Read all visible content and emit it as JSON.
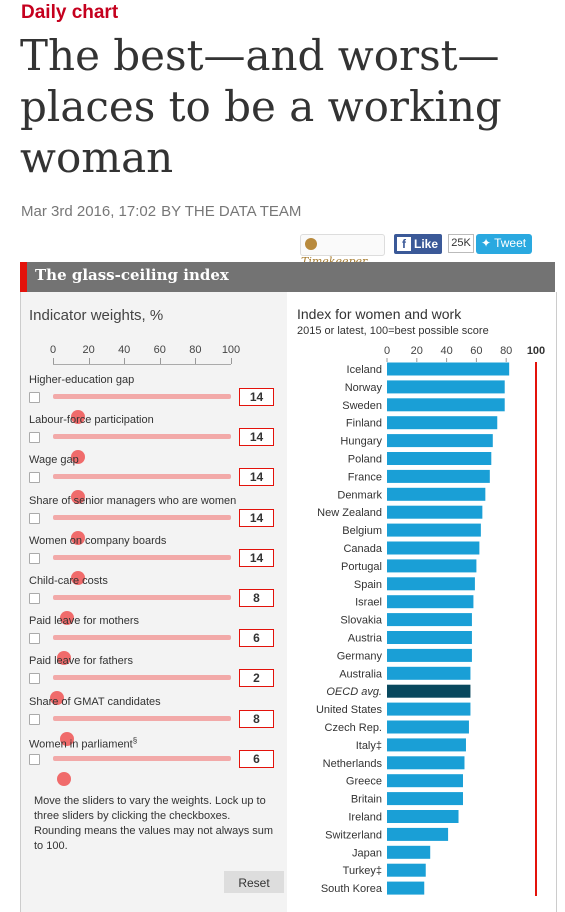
{
  "article": {
    "kicker": "Daily chart",
    "headline_lines": [
      "The best—and worst—",
      "places to be a working",
      "woman"
    ],
    "date": "Mar 3rd 2016, 17:02",
    "byline": "BY THE DATA TEAM"
  },
  "share": {
    "timekeeper": "Timekeeper",
    "like": "Like",
    "like_count": "25K",
    "tweet": "Tweet",
    "fb_icon": "f",
    "twitter_icon": "bird-icon",
    "timekeeper_icon": "clock-icon"
  },
  "panel": {
    "title": "The glass-ceiling index"
  },
  "weights": {
    "title": "Indicator weights, %",
    "axis_ticks": [
      "0",
      "20",
      "40",
      "60",
      "80",
      "100"
    ],
    "indicators": [
      {
        "label": "Higher-education gap",
        "value": 14,
        "value_text": "14",
        "sup": ""
      },
      {
        "label": "Labour-force participation",
        "value": 14,
        "value_text": "14",
        "sup": ""
      },
      {
        "label": "Wage gap",
        "value": 14,
        "value_text": "14",
        "sup": ""
      },
      {
        "label": "Share of senior managers who are women",
        "value": 14,
        "value_text": "14",
        "sup": ""
      },
      {
        "label": "Women on company boards",
        "value": 14,
        "value_text": "14",
        "sup": ""
      },
      {
        "label": "Child-care costs",
        "value": 8,
        "value_text": "8",
        "sup": ""
      },
      {
        "label": "Paid leave for mothers",
        "value": 6,
        "value_text": "6",
        "sup": ""
      },
      {
        "label": "Paid leave for fathers",
        "value": 2,
        "value_text": "2",
        "sup": ""
      },
      {
        "label": "Share of GMAT candidates",
        "value": 8,
        "value_text": "8",
        "sup": ""
      },
      {
        "label": "Women in parliament",
        "value": 6,
        "value_text": "6",
        "sup": "§"
      }
    ],
    "note": "Move the sliders to vary the weights. Lock up to three sliders by clicking the checkboxes. Rounding means the values may not always sum to 100.",
    "reset_label": "Reset"
  },
  "chart_data": {
    "type": "bar",
    "orientation": "horizontal",
    "title": "Index for women and work",
    "subtitle": "2015 or latest, 100=best possible score",
    "xlim": [
      0,
      100
    ],
    "ticks": [
      0,
      20,
      40,
      60,
      80
    ],
    "reference_line": {
      "value": 100,
      "label": "100",
      "color": "#e3120b"
    },
    "bar_color": "#1a9fd6",
    "highlight_color": "#08485e",
    "categories": [
      "Iceland",
      "Norway",
      "Sweden",
      "Finland",
      "Hungary",
      "Poland",
      "France",
      "Denmark",
      "New Zealand",
      "Belgium",
      "Canada",
      "Portugal",
      "Spain",
      "Israel",
      "Slovakia",
      "Austria",
      "Germany",
      "Australia",
      "OECD avg.",
      "United States",
      "Czech Rep.",
      "Italy",
      "Netherlands",
      "Greece",
      "Britain",
      "Ireland",
      "Switzerland",
      "Japan",
      "Turkey",
      "South Korea"
    ],
    "category_marks": {
      "Italy": "‡",
      "Turkey": "‡"
    },
    "highlight": [
      "OECD avg."
    ],
    "values": [
      82,
      79,
      79,
      74,
      71,
      70,
      69,
      66,
      64,
      63,
      62,
      60,
      59,
      58,
      57,
      57,
      57,
      56,
      56,
      56,
      55,
      53,
      52,
      51,
      51,
      48,
      41,
      29,
      26,
      25
    ]
  }
}
